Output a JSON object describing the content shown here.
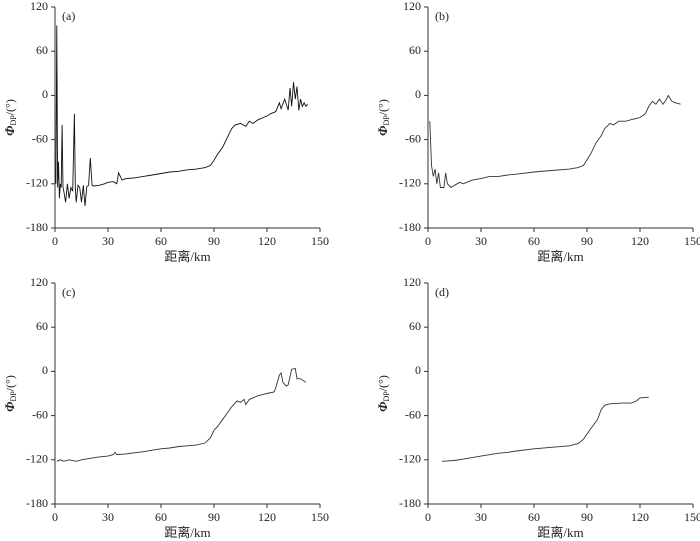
{
  "chart_data": [
    {
      "type": "line",
      "label": "(a)",
      "xlabel": "距离/km",
      "ylabel": [
        "Φ",
        "DP",
        "/(°)"
      ],
      "color": "#111111",
      "xlim": [
        0,
        150
      ],
      "xticks": [
        0,
        30,
        60,
        90,
        120,
        150
      ],
      "ylim": [
        -180,
        120
      ],
      "yticks": [
        -180,
        -120,
        -60,
        0,
        60,
        120
      ],
      "x": [
        0.5,
        1,
        1.5,
        2,
        2.5,
        3,
        3.5,
        4,
        4.5,
        5,
        6,
        7,
        8,
        9,
        10,
        11,
        11.5,
        12,
        13,
        14,
        15,
        16,
        17,
        18,
        19,
        20,
        21,
        22,
        25,
        28,
        30,
        33,
        35,
        36,
        38,
        40,
        45,
        50,
        55,
        60,
        65,
        70,
        75,
        80,
        85,
        88,
        90,
        92,
        95,
        98,
        100,
        102,
        105,
        108,
        110,
        112,
        115,
        118,
        120,
        122,
        125,
        127,
        128,
        130,
        132,
        133,
        134,
        135,
        136,
        137,
        138,
        139,
        140,
        141,
        142,
        143
      ],
      "values": [
        -120,
        95,
        -125,
        -90,
        -140,
        -120,
        -125,
        -40,
        -125,
        -130,
        -145,
        -120,
        -140,
        -125,
        -130,
        -25,
        -125,
        -145,
        -122,
        -125,
        -145,
        -122,
        -150,
        -124,
        -122,
        -85,
        -122,
        -123,
        -122,
        -120,
        -118,
        -117,
        -120,
        -105,
        -115,
        -113,
        -112,
        -110,
        -108,
        -106,
        -104,
        -103,
        -101,
        -100,
        -98,
        -95,
        -88,
        -80,
        -70,
        -55,
        -45,
        -40,
        -38,
        -42,
        -35,
        -38,
        -33,
        -30,
        -28,
        -25,
        -22,
        -10,
        -18,
        -5,
        -20,
        10,
        -15,
        18,
        -5,
        12,
        -20,
        -5,
        -15,
        -10,
        -15,
        -12
      ]
    },
    {
      "type": "line",
      "label": "(b)",
      "xlabel": "距离/km",
      "ylabel": [
        "Φ",
        "DP",
        "/(°)"
      ],
      "color": "#333333",
      "xlim": [
        0,
        150
      ],
      "xticks": [
        0,
        30,
        60,
        90,
        120,
        150
      ],
      "ylim": [
        -180,
        120
      ],
      "yticks": [
        -180,
        -120,
        -60,
        0,
        60,
        120
      ],
      "x": [
        1,
        2,
        3,
        4,
        5,
        6,
        7,
        9,
        10,
        11,
        13,
        15,
        18,
        20,
        25,
        30,
        35,
        40,
        45,
        50,
        60,
        70,
        80,
        85,
        88,
        92,
        95,
        98,
        100,
        103,
        105,
        108,
        112,
        115,
        120,
        123,
        125,
        127,
        129,
        131,
        133,
        135,
        136,
        138,
        140,
        143
      ],
      "values": [
        -35,
        -95,
        -110,
        -100,
        -120,
        -105,
        -125,
        -125,
        -105,
        -120,
        -125,
        -122,
        -118,
        -120,
        -115,
        -113,
        -110,
        -110,
        -108,
        -107,
        -104,
        -102,
        -100,
        -98,
        -95,
        -80,
        -65,
        -55,
        -45,
        -38,
        -40,
        -35,
        -35,
        -33,
        -30,
        -25,
        -15,
        -8,
        -12,
        -5,
        -12,
        -5,
        0,
        -8,
        -10,
        -12
      ]
    },
    {
      "type": "line",
      "label": "(c)",
      "xlabel": "距离/km",
      "ylabel": [
        "Φ",
        "DP",
        "/(°)"
      ],
      "color": "#333333",
      "xlim": [
        0,
        150
      ],
      "xticks": [
        0,
        30,
        60,
        90,
        120,
        150
      ],
      "ylim": [
        -180,
        120
      ],
      "yticks": [
        -180,
        -120,
        -60,
        0,
        60,
        120
      ],
      "x": [
        1,
        3,
        5,
        8,
        12,
        15,
        20,
        25,
        30,
        33,
        34,
        35,
        40,
        50,
        55,
        60,
        65,
        70,
        75,
        80,
        85,
        88,
        90,
        92,
        95,
        98,
        100,
        103,
        105,
        107,
        108,
        110,
        115,
        120,
        124,
        125,
        127,
        128,
        129,
        131,
        132,
        134,
        136,
        137,
        139,
        142
      ],
      "values": [
        -122,
        -120,
        -122,
        -120,
        -122,
        -120,
        -118,
        -116,
        -115,
        -113,
        -110,
        -113,
        -112,
        -109,
        -107,
        -105,
        -104,
        -102,
        -101,
        -100,
        -97,
        -90,
        -80,
        -75,
        -65,
        -55,
        -48,
        -40,
        -42,
        -38,
        -45,
        -38,
        -33,
        -30,
        -28,
        -22,
        -5,
        -2,
        -15,
        -20,
        -18,
        3,
        4,
        -10,
        -10,
        -15
      ]
    },
    {
      "type": "line",
      "label": "(d)",
      "xlabel": "距离/km",
      "ylabel": [
        "Φ",
        "DP",
        "/(°)"
      ],
      "color": "#333333",
      "xlim": [
        0,
        150
      ],
      "xticks": [
        0,
        30,
        60,
        90,
        120,
        150
      ],
      "ylim": [
        -180,
        120
      ],
      "yticks": [
        -180,
        -120,
        -60,
        0,
        60,
        120
      ],
      "x": [
        8,
        15,
        20,
        30,
        40,
        45,
        50,
        60,
        70,
        80,
        85,
        88,
        90,
        93,
        96,
        98,
        100,
        103,
        110,
        115,
        118,
        120,
        125
      ],
      "values": [
        -122,
        -121,
        -119,
        -115,
        -111,
        -110,
        -108,
        -105,
        -103,
        -101,
        -98,
        -92,
        -85,
        -75,
        -65,
        -52,
        -46,
        -44,
        -43,
        -43,
        -40,
        -36,
        -35
      ]
    }
  ]
}
